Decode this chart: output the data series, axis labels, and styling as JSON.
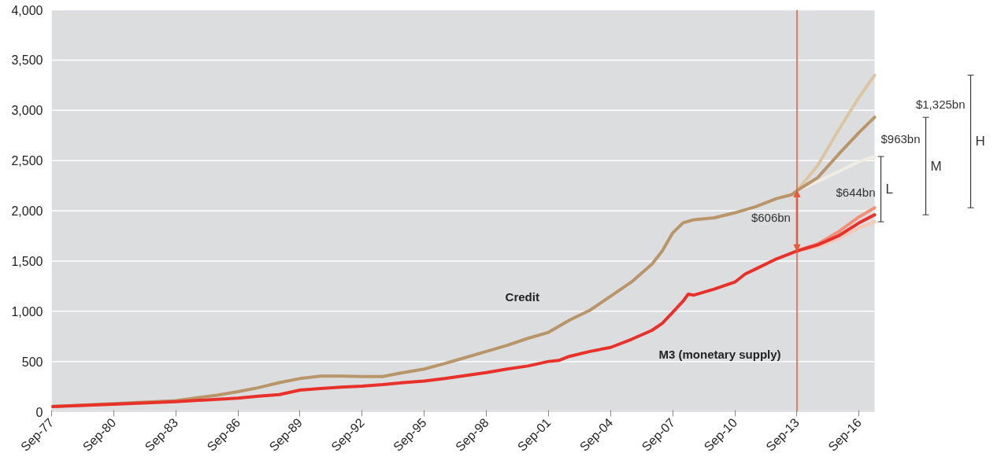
{
  "chart_data": {
    "type": "line",
    "series": [
      {
        "name": "Credit",
        "color": "#b8956a",
        "x": [
          "1977-09",
          "1980-09",
          "1983-09",
          "1985-09",
          "1986-09",
          "1987-09",
          "1988-09",
          "1989-09",
          "1990-09",
          "1991-09",
          "1992-09",
          "1993-09",
          "1994-09",
          "1995-09",
          "1996-09",
          "1997-09",
          "1998-09",
          "1999-09",
          "2000-09",
          "2001-09",
          "2002-09",
          "2003-09",
          "2004-09",
          "2005-09",
          "2006-09",
          "2007-03",
          "2007-09",
          "2008-03",
          "2008-09",
          "2009-09",
          "2010-09",
          "2011-09",
          "2012-09",
          "2013-06",
          "2013-09",
          "2014-09",
          "2015-09",
          "2016-09",
          "2017-06"
        ],
        "values": [
          50,
          80,
          110,
          165,
          200,
          240,
          290,
          330,
          355,
          355,
          350,
          350,
          390,
          425,
          480,
          540,
          600,
          660,
          730,
          790,
          910,
          1010,
          1150,
          1290,
          1470,
          1600,
          1780,
          1880,
          1910,
          1930,
          1980,
          2040,
          2120,
          2160,
          2200,
          2330,
          2560,
          2780,
          2930
        ]
      },
      {
        "name": "M3 (monetary supply)",
        "color": "#e8312a",
        "x": [
          "1977-09",
          "1980-09",
          "1983-09",
          "1986-09",
          "1987-09",
          "1988-09",
          "1989-09",
          "1990-09",
          "1991-09",
          "1992-09",
          "1993-09",
          "1994-09",
          "1995-09",
          "1996-09",
          "1997-09",
          "1998-09",
          "1999-09",
          "2000-09",
          "2001-09",
          "2002-03",
          "2002-09",
          "2003-09",
          "2004-09",
          "2005-09",
          "2006-09",
          "2007-03",
          "2007-09",
          "2008-03",
          "2008-06",
          "2008-09",
          "2009-09",
          "2010-09",
          "2011-03",
          "2011-09",
          "2012-09",
          "2013-09",
          "2014-03",
          "2014-09",
          "2015-09",
          "2016-09",
          "2017-06"
        ],
        "values": [
          50,
          75,
          100,
          135,
          155,
          170,
          215,
          230,
          245,
          255,
          270,
          290,
          305,
          330,
          360,
          390,
          425,
          455,
          500,
          510,
          550,
          600,
          640,
          720,
          810,
          880,
          990,
          1100,
          1170,
          1160,
          1220,
          1290,
          1370,
          1420,
          1520,
          1600,
          1630,
          1660,
          1750,
          1880,
          1960
        ]
      },
      {
        "color": "#dcc5a3",
        "x": [
          "2013-09",
          "2014-09",
          "2015-09",
          "2016-09",
          "2017-06"
        ],
        "values": [
          2200,
          2450,
          2800,
          3130,
          3350
        ]
      },
      {
        "color": "#f0ebe3",
        "x": [
          "2013-09",
          "2014-09",
          "2015-09",
          "2016-09",
          "2017-06"
        ],
        "values": [
          2200,
          2290,
          2390,
          2490,
          2540
        ]
      },
      {
        "color": "#f2907a",
        "x": [
          "2013-09",
          "2014-09",
          "2015-09",
          "2016-09",
          "2017-06"
        ],
        "values": [
          1600,
          1670,
          1790,
          1940,
          2030
        ]
      },
      {
        "color": "#f5c8b8",
        "x": [
          "2013-09",
          "2014-09",
          "2015-09",
          "2016-09",
          "2017-06"
        ],
        "values": [
          1600,
          1640,
          1720,
          1830,
          1890
        ]
      }
    ],
    "xlim": [
      "1977-09",
      "2017-06"
    ],
    "xticks": [
      {
        "value": "1977-09",
        "label": "Sep-77"
      },
      {
        "value": "1980-09",
        "label": "Sep-80"
      },
      {
        "value": "1983-09",
        "label": "Sep-83"
      },
      {
        "value": "1986-09",
        "label": "Sep-86"
      },
      {
        "value": "1989-09",
        "label": "Sep-89"
      },
      {
        "value": "1992-09",
        "label": "Sep-92"
      },
      {
        "value": "1995-09",
        "label": "Sep-95"
      },
      {
        "value": "1998-09",
        "label": "Sep-98"
      },
      {
        "value": "2001-09",
        "label": "Sep-01"
      },
      {
        "value": "2004-09",
        "label": "Sep-04"
      },
      {
        "value": "2007-09",
        "label": "Sep-07"
      },
      {
        "value": "2010-09",
        "label": "Sep-10"
      },
      {
        "value": "2013-09",
        "label": "Sep-13"
      },
      {
        "value": "2016-09",
        "label": "Sep-16"
      }
    ],
    "ylim": [
      0,
      4000
    ],
    "yticks": [
      0,
      500,
      {
        "value": 1000,
        "label": "1,000"
      },
      {
        "value": 1500,
        "label": "1,500"
      },
      {
        "value": 2000,
        "label": "2,000"
      },
      {
        "value": 2500,
        "label": "2,500"
      },
      {
        "value": 3000,
        "label": "3,000"
      },
      {
        "value": 3500,
        "label": "3,500"
      },
      {
        "value": 4000,
        "label": "4,000"
      }
    ],
    "grid": "y",
    "ref_lines": [
      {
        "axis": "x",
        "value": "2013-09",
        "color": "#e8593f"
      }
    ],
    "annotations": [
      "$606bn",
      "$1,325bn",
      "H",
      "$963bn",
      "M",
      "$644bn",
      "L"
    ]
  }
}
